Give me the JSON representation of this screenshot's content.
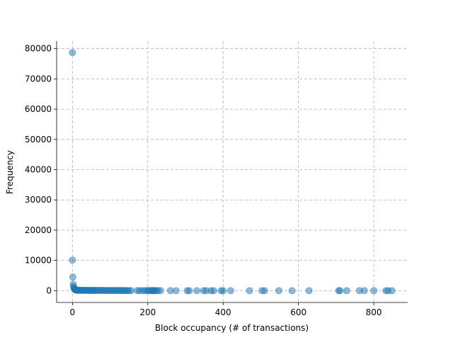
{
  "chart_data": {
    "type": "scatter",
    "title": "",
    "xlabel": "Block occupancy (# of transactions)",
    "ylabel": "Frequency",
    "xlim": [
      -42,
      890
    ],
    "ylim": [
      -3900,
      82500
    ],
    "xticks": [
      0,
      200,
      400,
      600,
      800
    ],
    "yticks": [
      0,
      10000,
      20000,
      30000,
      40000,
      50000,
      60000,
      70000,
      80000
    ],
    "grid": true,
    "marker_color": "#1f77b4",
    "marker_alpha": 0.5,
    "points": [
      [
        0,
        78700
      ],
      [
        0,
        10100
      ],
      [
        1,
        4500
      ],
      [
        2,
        2100
      ],
      [
        3,
        1300
      ],
      [
        4,
        900
      ],
      [
        5,
        600
      ],
      [
        6,
        420
      ],
      [
        7,
        320
      ],
      [
        8,
        260
      ],
      [
        10,
        200
      ],
      [
        12,
        170
      ],
      [
        14,
        150
      ],
      [
        16,
        140
      ],
      [
        18,
        130
      ],
      [
        20,
        120
      ],
      [
        23,
        115
      ],
      [
        26,
        110
      ],
      [
        29,
        105
      ],
      [
        32,
        100
      ],
      [
        35,
        98
      ],
      [
        38,
        95
      ],
      [
        41,
        92
      ],
      [
        44,
        90
      ],
      [
        47,
        88
      ],
      [
        50,
        85
      ],
      [
        53,
        83
      ],
      [
        56,
        80
      ],
      [
        59,
        78
      ],
      [
        62,
        76
      ],
      [
        66,
        74
      ],
      [
        70,
        72
      ],
      [
        74,
        70
      ],
      [
        78,
        68
      ],
      [
        82,
        66
      ],
      [
        86,
        64
      ],
      [
        90,
        62
      ],
      [
        94,
        60
      ],
      [
        98,
        58
      ],
      [
        102,
        56
      ],
      [
        106,
        54
      ],
      [
        110,
        52
      ],
      [
        114,
        50
      ],
      [
        118,
        48
      ],
      [
        122,
        46
      ],
      [
        126,
        44
      ],
      [
        130,
        42
      ],
      [
        134,
        40
      ],
      [
        138,
        38
      ],
      [
        142,
        36
      ],
      [
        146,
        34
      ],
      [
        150,
        32
      ],
      [
        156,
        30
      ],
      [
        172,
        26
      ],
      [
        178,
        24
      ],
      [
        186,
        22
      ],
      [
        192,
        20
      ],
      [
        198,
        18
      ],
      [
        202,
        17
      ],
      [
        206,
        16
      ],
      [
        210,
        15
      ],
      [
        213,
        14
      ],
      [
        216,
        13
      ],
      [
        219,
        12
      ],
      [
        222,
        11
      ],
      [
        227,
        10
      ],
      [
        234,
        9
      ],
      [
        260,
        8
      ],
      [
        275,
        7
      ],
      [
        305,
        6
      ],
      [
        310,
        6
      ],
      [
        330,
        5
      ],
      [
        348,
        5
      ],
      [
        355,
        4
      ],
      [
        368,
        4
      ],
      [
        375,
        4
      ],
      [
        395,
        3
      ],
      [
        400,
        3
      ],
      [
        420,
        3
      ],
      [
        470,
        2
      ],
      [
        503,
        2
      ],
      [
        510,
        2
      ],
      [
        548,
        2
      ],
      [
        583,
        1
      ],
      [
        628,
        1
      ],
      [
        707,
        1
      ],
      [
        710,
        1
      ],
      [
        728,
        1
      ],
      [
        762,
        1
      ],
      [
        775,
        1
      ],
      [
        800,
        1
      ],
      [
        832,
        1
      ],
      [
        838,
        1
      ],
      [
        848,
        1
      ]
    ]
  }
}
